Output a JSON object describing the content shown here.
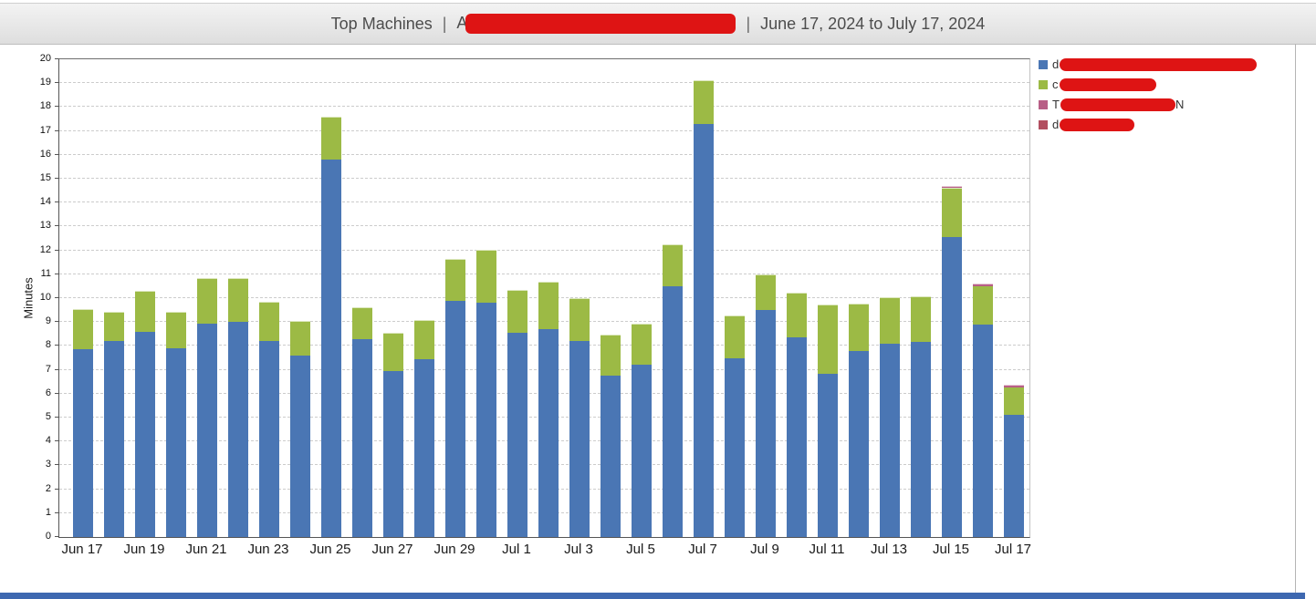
{
  "header": {
    "title": "Top Machines",
    "separator1": "|",
    "machine_label_visible_prefix": "A",
    "machine_label_redacted": true,
    "separator2": "|",
    "date_range": "June 17, 2024 to July 17, 2024"
  },
  "colors": {
    "redaction": "#DE1414",
    "bottom_bar": "#3E68B0",
    "header_text": "#4D4D4D"
  },
  "chart_data": {
    "type": "bar",
    "stacked": true,
    "title": "",
    "xlabel": "",
    "ylabel": "Minutes",
    "ylim": [
      0,
      20
    ],
    "ytick_step": 1,
    "grid": "horizontal-dashed",
    "legend_position": "right",
    "categories": [
      "Jun 17",
      "Jun 18",
      "Jun 19",
      "Jun 20",
      "Jun 21",
      "Jun 22",
      "Jun 23",
      "Jun 24",
      "Jun 25",
      "Jun 26",
      "Jun 27",
      "Jun 28",
      "Jun 29",
      "Jun 30",
      "Jul 1",
      "Jul 2",
      "Jul 3",
      "Jul 4",
      "Jul 5",
      "Jul 6",
      "Jul 7",
      "Jul 8",
      "Jul 9",
      "Jul 10",
      "Jul 11",
      "Jul 12",
      "Jul 13",
      "Jul 14",
      "Jul 15",
      "Jul 16",
      "Jul 17"
    ],
    "xtick_labels": [
      "Jun 17",
      "Jun 19",
      "Jun 21",
      "Jun 23",
      "Jun 25",
      "Jun 27",
      "Jun 29",
      "Jul 1",
      "Jul 3",
      "Jul 5",
      "Jul 7",
      "Jul 9",
      "Jul 11",
      "Jul 13",
      "Jul 15",
      "Jul 17"
    ],
    "xtick_every": 2,
    "series": [
      {
        "name_visible_prefix": "d",
        "name_visible_suffix": "",
        "name_redacted": true,
        "color": "#4A76B4",
        "values": [
          7.85,
          8.2,
          8.6,
          7.9,
          8.95,
          9.0,
          8.2,
          7.6,
          15.8,
          8.3,
          6.95,
          7.45,
          9.9,
          9.8,
          8.55,
          8.7,
          8.2,
          6.75,
          7.2,
          10.5,
          17.3,
          7.5,
          9.5,
          8.35,
          6.85,
          7.8,
          8.1,
          8.15,
          12.55,
          8.9,
          5.1
        ]
      },
      {
        "name_visible_prefix": "c",
        "name_visible_suffix": "",
        "name_redacted": true,
        "color": "#9CBA45",
        "values": [
          1.65,
          1.2,
          1.65,
          1.5,
          1.85,
          1.8,
          1.6,
          1.4,
          1.75,
          1.3,
          1.55,
          1.6,
          1.7,
          2.2,
          1.75,
          1.95,
          1.75,
          1.7,
          1.7,
          1.7,
          1.8,
          1.75,
          1.45,
          1.85,
          2.85,
          1.95,
          1.9,
          1.9,
          2.05,
          1.6,
          1.15
        ]
      },
      {
        "name_visible_prefix": "T",
        "name_visible_suffix": "N",
        "name_redacted": true,
        "color": "#B85F86",
        "values": [
          0,
          0,
          0,
          0,
          0,
          0,
          0,
          0,
          0,
          0,
          0,
          0,
          0,
          0,
          0,
          0,
          0,
          0,
          0,
          0,
          0,
          0,
          0,
          0,
          0,
          0,
          0,
          0,
          0.07,
          0.07,
          0.07
        ]
      },
      {
        "name_visible_prefix": "d",
        "name_visible_suffix": "",
        "name_redacted": true,
        "color": "#B24F60",
        "values": [
          0,
          0,
          0,
          0,
          0,
          0,
          0,
          0,
          0,
          0,
          0,
          0,
          0,
          0,
          0,
          0,
          0,
          0,
          0,
          0,
          0,
          0,
          0,
          0,
          0,
          0,
          0,
          0,
          0,
          0,
          0
        ]
      }
    ],
    "legend_redact_widths": [
      216,
      106,
      126,
      82
    ]
  }
}
